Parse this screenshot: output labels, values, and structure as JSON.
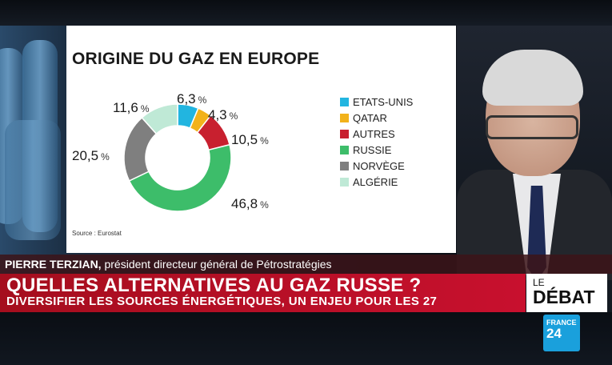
{
  "chart_data": {
    "type": "pie",
    "title": "ORIGINE DU GAZ EN EUROPE",
    "source": "Source :  Eurostat",
    "unit": "%",
    "categories": [
      "ETATS-UNIS",
      "QATAR",
      "AUTRES",
      "RUSSIE",
      "NORVÈGE",
      "ALGÉRIE"
    ],
    "values": [
      6.3,
      4.3,
      10.5,
      46.8,
      20.5,
      11.6
    ],
    "value_labels": [
      "6,3",
      "4,3",
      "10,5",
      "46,8",
      "20,5",
      "11,6"
    ],
    "colors": [
      "#22b5e0",
      "#f2b21a",
      "#c8202f",
      "#3dbd6a",
      "#7f7f7f",
      "#bfe9d6"
    ],
    "legend_position": "right"
  },
  "lower_third": {
    "guest_name": "PIERRE TERZIAN,",
    "guest_role": " président directeur général de Pétrostratégies",
    "headline": "QUELLES ALTERNATIVES AU GAZ RUSSE ?",
    "subline": "DIVERSIFIER LES SOURCES ÉNERGÉTIQUES, UN ENJEU POUR LES 27"
  },
  "program": {
    "le": "LE",
    "debat": "DÉBAT"
  },
  "channel": {
    "line1": "FRANCE",
    "line2": "24"
  }
}
